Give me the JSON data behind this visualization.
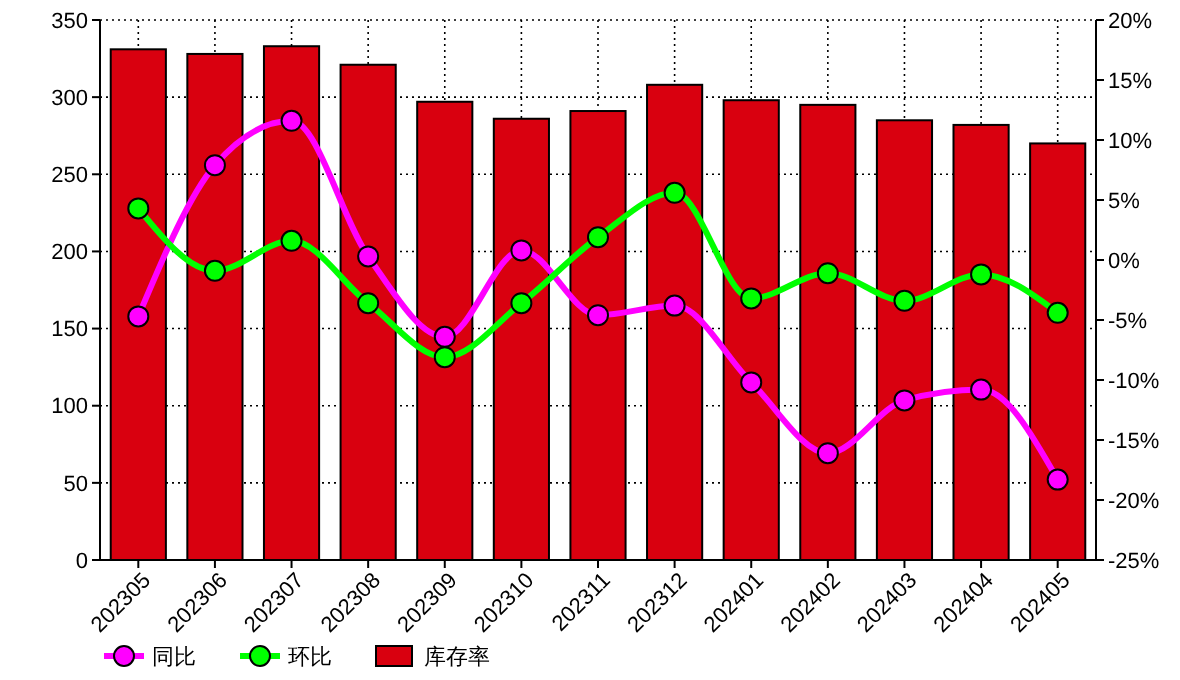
{
  "chart_data": {
    "type": "bar",
    "categories": [
      "202305",
      "202306",
      "202307",
      "202308",
      "202309",
      "202310",
      "202311",
      "202312",
      "202401",
      "202402",
      "202403",
      "202404",
      "202405"
    ],
    "series": [
      {
        "name": "同比",
        "type": "line",
        "axis": "y2",
        "color": "#ff00ff",
        "values": [
          -4.7,
          7.9,
          11.6,
          0.3,
          -6.4,
          0.8,
          -4.6,
          -3.8,
          -10.2,
          -16.1,
          -11.7,
          -10.8,
          -18.3
        ]
      },
      {
        "name": "环比",
        "type": "line",
        "axis": "y2",
        "color": "#00ff00",
        "values": [
          4.3,
          -0.9,
          1.6,
          -3.6,
          -8.1,
          -3.6,
          1.9,
          5.6,
          -3.2,
          -1.1,
          -3.4,
          -1.2,
          -4.4
        ]
      },
      {
        "name": "库存率",
        "color": "#d9000f",
        "values": [
          331,
          328,
          333,
          321,
          297,
          286,
          291,
          308,
          298,
          295,
          285,
          282,
          270
        ]
      }
    ],
    "ylim": [
      0,
      350
    ],
    "yticks": [
      0,
      50,
      100,
      150,
      200,
      250,
      300,
      350
    ],
    "y2lim": [
      -25,
      20
    ],
    "y2ticks": [
      {
        "value": -25,
        "label": "-25%"
      },
      {
        "value": -20,
        "label": "-20%"
      },
      {
        "value": -15,
        "label": "-15%"
      },
      {
        "value": -10,
        "label": "-10%"
      },
      {
        "value": -5,
        "label": "-5%"
      },
      {
        "value": 0,
        "label": "0%"
      },
      {
        "value": 5,
        "label": "5%"
      },
      {
        "value": 10,
        "label": "10%"
      },
      {
        "value": 15,
        "label": "15%"
      },
      {
        "value": 20,
        "label": "20%"
      }
    ],
    "grid": true,
    "legend": "bottom",
    "marker": "circle"
  }
}
